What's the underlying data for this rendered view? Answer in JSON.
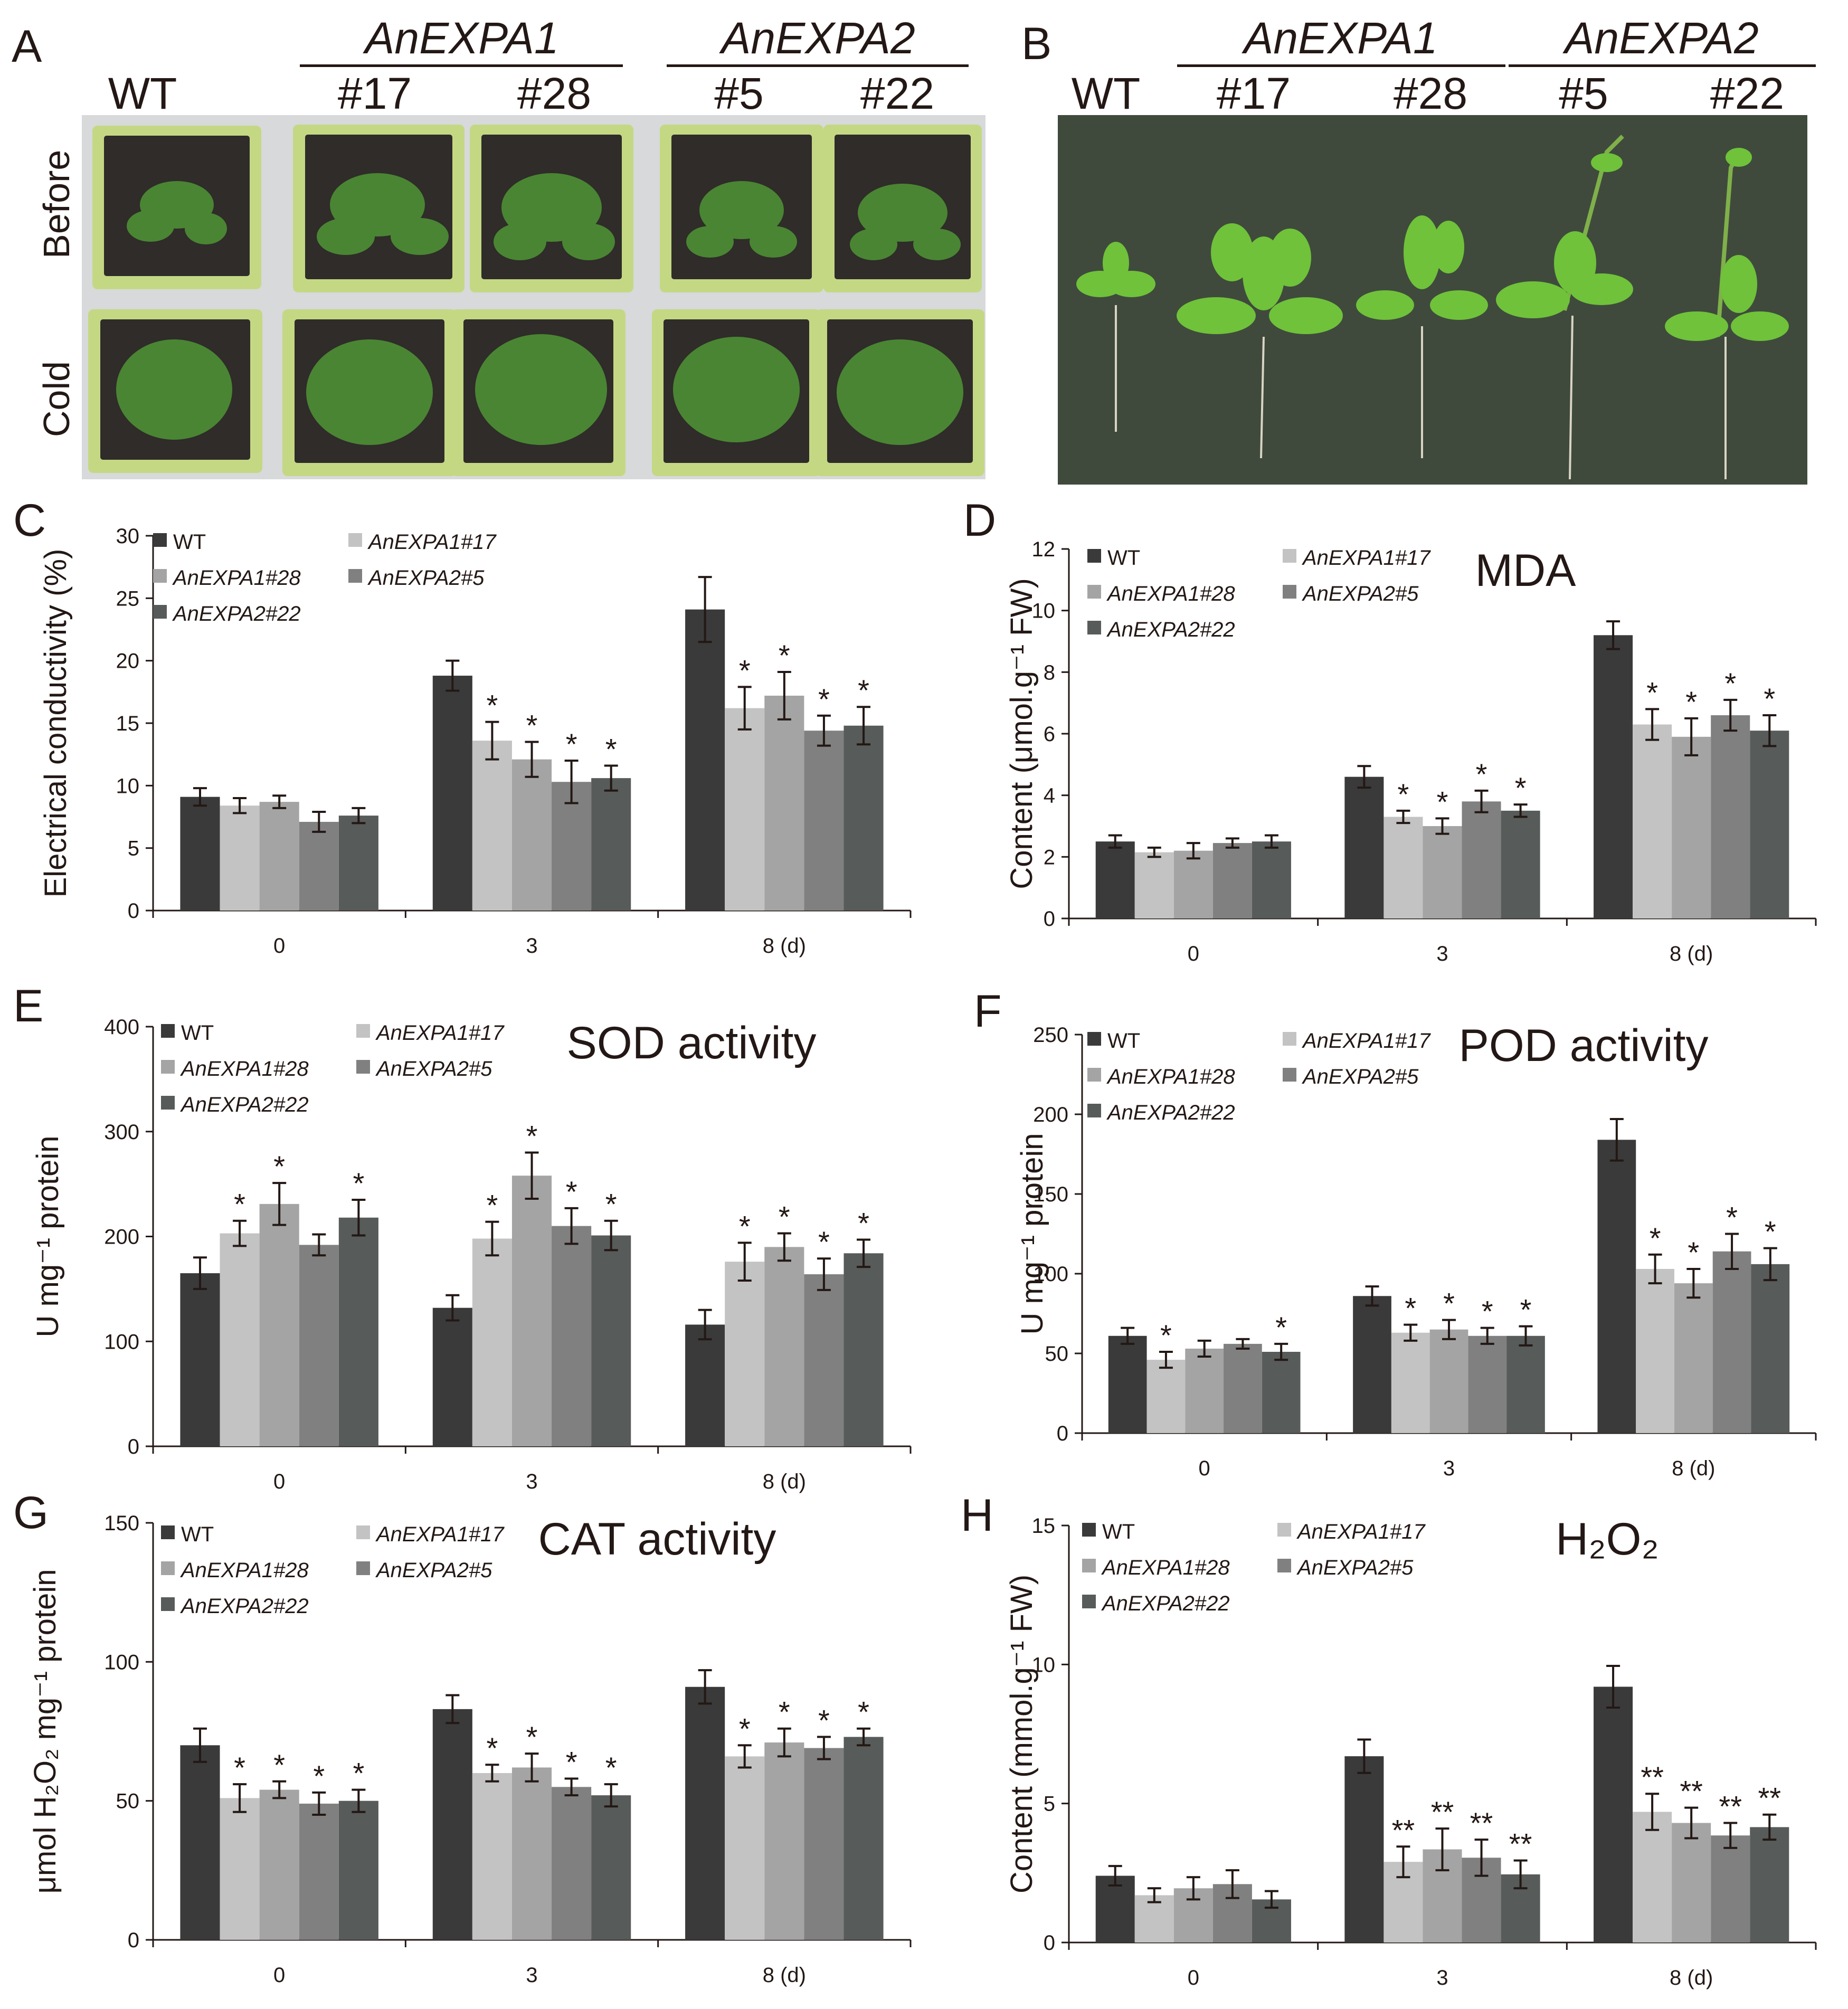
{
  "panel_a": {
    "letter": "A",
    "groups": [
      {
        "name": "AnEXPA1"
      },
      {
        "name": "AnEXPA2"
      }
    ],
    "columns": [
      "WT",
      "#17",
      "#28",
      "#5",
      "#22"
    ],
    "rows": [
      "Before",
      "Cold"
    ]
  },
  "panel_b": {
    "letter": "B",
    "groups": [
      {
        "name": "AnEXPA1"
      },
      {
        "name": "AnEXPA2"
      }
    ],
    "columns": [
      "WT",
      "#17",
      "#28",
      "#5",
      "#22"
    ]
  },
  "colors": {
    "WT": "#3a3a3a",
    "AnEXPA1#17": "#c3c3c3",
    "AnEXPA1#28": "#a4a4a4",
    "AnEXPA2#5": "#808080",
    "AnEXPA2#22": "#575b5a"
  },
  "chart_data": [
    {
      "id": "C",
      "letter": "C",
      "type": "bar",
      "title": "",
      "ylabel": "Electrical conductivity  (%)",
      "ylim": [
        0,
        30
      ],
      "yticks": [
        "0",
        "5",
        "10",
        "15",
        "20",
        "25",
        "30"
      ],
      "categories": [
        "0",
        "3",
        "8 (d)"
      ],
      "series": [
        {
          "name": "WT",
          "values": [
            9.1,
            18.8,
            24.1
          ],
          "errors": [
            0.7,
            1.2,
            2.6
          ],
          "marks": [
            "",
            "",
            ""
          ]
        },
        {
          "name": "AnEXPA1#17",
          "values": [
            8.4,
            13.6,
            16.2
          ],
          "errors": [
            0.6,
            1.5,
            1.7
          ],
          "marks": [
            "",
            "*",
            "*"
          ]
        },
        {
          "name": "AnEXPA1#28",
          "values": [
            8.7,
            12.1,
            17.2
          ],
          "errors": [
            0.5,
            1.4,
            1.9
          ],
          "marks": [
            "",
            "*",
            "*"
          ]
        },
        {
          "name": "AnEXPA2#5",
          "values": [
            7.1,
            10.3,
            14.4
          ],
          "errors": [
            0.8,
            1.7,
            1.2
          ],
          "marks": [
            "",
            "*",
            "*"
          ]
        },
        {
          "name": "AnEXPA2#22",
          "values": [
            7.6,
            10.6,
            14.8
          ],
          "errors": [
            0.6,
            1.0,
            1.5
          ],
          "marks": [
            "",
            "*",
            "*"
          ]
        }
      ]
    },
    {
      "id": "D",
      "letter": "D",
      "type": "bar",
      "title": "MDA",
      "ylabel": "Content (μmol.g⁻¹ FW)",
      "ylim": [
        0,
        12
      ],
      "yticks": [
        "0",
        "2",
        "4",
        "6",
        "8",
        "10",
        "12"
      ],
      "categories": [
        "0",
        "3",
        "8 (d)"
      ],
      "series": [
        {
          "name": "WT",
          "values": [
            2.5,
            4.6,
            9.2
          ],
          "errors": [
            0.2,
            0.35,
            0.45
          ],
          "marks": [
            "",
            "",
            ""
          ]
        },
        {
          "name": "AnEXPA1#17",
          "values": [
            2.15,
            3.3,
            6.3
          ],
          "errors": [
            0.15,
            0.2,
            0.5
          ],
          "marks": [
            "",
            "*",
            "*"
          ]
        },
        {
          "name": "AnEXPA1#28",
          "values": [
            2.2,
            3.0,
            5.9
          ],
          "errors": [
            0.25,
            0.25,
            0.6
          ],
          "marks": [
            "",
            "*",
            "*"
          ]
        },
        {
          "name": "AnEXPA2#5",
          "values": [
            2.45,
            3.8,
            6.6
          ],
          "errors": [
            0.15,
            0.35,
            0.5
          ],
          "marks": [
            "",
            "*",
            "*"
          ]
        },
        {
          "name": "AnEXPA2#22",
          "values": [
            2.5,
            3.5,
            6.1
          ],
          "errors": [
            0.2,
            0.2,
            0.5
          ],
          "marks": [
            "",
            "*",
            "*"
          ]
        }
      ]
    },
    {
      "id": "E",
      "letter": "E",
      "type": "bar",
      "title": "SOD activity",
      "ylabel": "U mg⁻¹ protein",
      "ylim": [
        0,
        400
      ],
      "yticks": [
        "0",
        "100",
        "200",
        "300",
        "400"
      ],
      "categories": [
        "0",
        "3",
        "8 (d)"
      ],
      "series": [
        {
          "name": "WT",
          "values": [
            165,
            132,
            116
          ],
          "errors": [
            15,
            12,
            14
          ],
          "marks": [
            "",
            "",
            ""
          ]
        },
        {
          "name": "AnEXPA1#17",
          "values": [
            203,
            198,
            176
          ],
          "errors": [
            12,
            16,
            18
          ],
          "marks": [
            "*",
            "*",
            "*"
          ]
        },
        {
          "name": "AnEXPA1#28",
          "values": [
            231,
            258,
            190
          ],
          "errors": [
            20,
            22,
            13
          ],
          "marks": [
            "*",
            "*",
            "*"
          ]
        },
        {
          "name": "AnEXPA2#5",
          "values": [
            192,
            210,
            164
          ],
          "errors": [
            10,
            17,
            15
          ],
          "marks": [
            "",
            "*",
            "*"
          ]
        },
        {
          "name": "AnEXPA2#22",
          "values": [
            218,
            201,
            184
          ],
          "errors": [
            17,
            14,
            13
          ],
          "marks": [
            "*",
            "*",
            "*"
          ]
        }
      ]
    },
    {
      "id": "F",
      "letter": "F",
      "type": "bar",
      "title": "POD activity",
      "ylabel": "U mg⁻¹ protein",
      "ylim": [
        0,
        250
      ],
      "yticks": [
        "0",
        "50",
        "100",
        "150",
        "200",
        "250"
      ],
      "categories": [
        "0",
        "3",
        "8 (d)"
      ],
      "series": [
        {
          "name": "WT",
          "values": [
            61,
            86,
            184
          ],
          "errors": [
            5,
            6,
            13
          ],
          "marks": [
            "",
            "",
            ""
          ]
        },
        {
          "name": "AnEXPA1#17",
          "values": [
            46,
            63,
            103
          ],
          "errors": [
            5,
            5,
            9
          ],
          "marks": [
            "*",
            "*",
            "*"
          ]
        },
        {
          "name": "AnEXPA1#28",
          "values": [
            53,
            65,
            94
          ],
          "errors": [
            5,
            6,
            9
          ],
          "marks": [
            "",
            "*",
            "*"
          ]
        },
        {
          "name": "AnEXPA2#5",
          "values": [
            56,
            61,
            114
          ],
          "errors": [
            3,
            5,
            11
          ],
          "marks": [
            "",
            "*",
            "*"
          ]
        },
        {
          "name": "AnEXPA2#22",
          "values": [
            51,
            61,
            106
          ],
          "errors": [
            5,
            6,
            10
          ],
          "marks": [
            "*",
            "*",
            "*"
          ]
        }
      ]
    },
    {
      "id": "G",
      "letter": "G",
      "type": "bar",
      "title": "CAT activity",
      "ylabel": "μmol H₂O₂ mg⁻¹ protein",
      "ylim": [
        0,
        150
      ],
      "yticks": [
        "0",
        "50",
        "100",
        "150"
      ],
      "categories": [
        "0",
        "3",
        "8 (d)"
      ],
      "series": [
        {
          "name": "WT",
          "values": [
            70,
            83,
            91
          ],
          "errors": [
            6,
            5,
            6
          ],
          "marks": [
            "",
            "",
            ""
          ]
        },
        {
          "name": "AnEXPA1#17",
          "values": [
            51,
            60,
            66
          ],
          "errors": [
            5,
            3,
            4
          ],
          "marks": [
            "*",
            "*",
            "*"
          ]
        },
        {
          "name": "AnEXPA1#28",
          "values": [
            54,
            62,
            71
          ],
          "errors": [
            3,
            5,
            5
          ],
          "marks": [
            "*",
            "*",
            "*"
          ]
        },
        {
          "name": "AnEXPA2#5",
          "values": [
            49,
            55,
            69
          ],
          "errors": [
            4,
            3,
            4
          ],
          "marks": [
            "*",
            "*",
            "*"
          ]
        },
        {
          "name": "AnEXPA2#22",
          "values": [
            50,
            52,
            73
          ],
          "errors": [
            4,
            4,
            3
          ],
          "marks": [
            "*",
            "*",
            "*"
          ]
        }
      ]
    },
    {
      "id": "H",
      "letter": "H",
      "type": "bar",
      "title": "H₂O₂",
      "ylabel": "Content (mmol.g⁻¹ FW)",
      "ylim": [
        0,
        15
      ],
      "yticks": [
        "0",
        "5",
        "10",
        "15"
      ],
      "categories": [
        "0",
        "3",
        "8 (d)"
      ],
      "series": [
        {
          "name": "WT",
          "values": [
            2.4,
            6.7,
            9.2
          ],
          "errors": [
            0.35,
            0.6,
            0.75
          ],
          "marks": [
            "",
            "",
            ""
          ]
        },
        {
          "name": "AnEXPA1#17",
          "values": [
            1.7,
            2.9,
            4.7
          ],
          "errors": [
            0.25,
            0.55,
            0.65
          ],
          "marks": [
            "",
            "**",
            "**"
          ]
        },
        {
          "name": "AnEXPA1#28",
          "values": [
            1.95,
            3.35,
            4.3
          ],
          "errors": [
            0.4,
            0.75,
            0.55
          ],
          "marks": [
            "",
            "**",
            "**"
          ]
        },
        {
          "name": "AnEXPA2#5",
          "values": [
            2.1,
            3.05,
            3.85
          ],
          "errors": [
            0.5,
            0.65,
            0.45
          ],
          "marks": [
            "",
            "**",
            "**"
          ]
        },
        {
          "name": "AnEXPA2#22",
          "values": [
            1.55,
            2.45,
            4.15
          ],
          "errors": [
            0.3,
            0.5,
            0.45
          ],
          "marks": [
            "",
            "**",
            "**"
          ]
        }
      ]
    }
  ]
}
